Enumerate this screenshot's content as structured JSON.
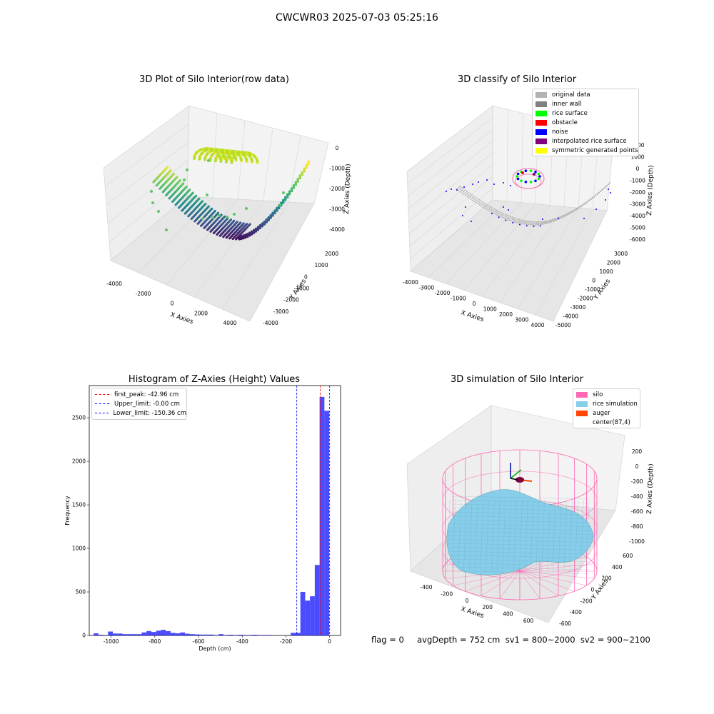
{
  "figure": {
    "suptitle": "CWCWR03 2025-07-03 05:25:16",
    "footer": "flag = 0     avgDepth = 752 cm  sv1 = 800~2000  sv2 = 900~2100"
  },
  "chart_data": [
    {
      "type": "scatter",
      "title": "3D Plot of Silo Interior(row data)",
      "xlabel": "X Axies",
      "ylabel": "Y Axies",
      "zlabel": "Z Axies (Depth)",
      "x_ticks": [
        "-4000",
        "-2000",
        "0",
        "2000",
        "4000"
      ],
      "y_ticks": [
        "2000",
        "1000",
        "0",
        "-1000",
        "-2000",
        "-3000",
        "-4000"
      ],
      "z_ticks": [
        "0",
        "-1000",
        "-2000",
        "-3000",
        "-4000"
      ],
      "colormap": "viridis"
    },
    {
      "type": "scatter",
      "title": "3D classify of Silo Interior",
      "xlabel": "X Axies",
      "ylabel": "Y Axies",
      "zlabel": "Z Axies (Depth)",
      "x_ticks": [
        "-4000",
        "-3000",
        "-2000",
        "-1000",
        "0",
        "1000",
        "2000",
        "3000",
        "4000"
      ],
      "y_ticks": [
        "3000",
        "2000",
        "1000",
        "0",
        "-1000",
        "-2000",
        "-3000",
        "-4000",
        "-5000"
      ],
      "z_ticks": [
        "2000",
        "1000",
        "0",
        "-1000",
        "-2000",
        "-3000",
        "-4000",
        "-5000",
        "-6000"
      ],
      "legend": [
        {
          "label": "original data",
          "color": "#b3b3b3"
        },
        {
          "label": "inner wall",
          "color": "#808080"
        },
        {
          "label": "rice surface",
          "color": "#00ff00"
        },
        {
          "label": "obstacle",
          "color": "#ff0000"
        },
        {
          "label": "noise",
          "color": "#0000ff"
        },
        {
          "label": "interpolated rice surface",
          "color": "#800080"
        },
        {
          "label": "symmetric generated points",
          "color": "#ffff00"
        }
      ]
    },
    {
      "type": "bar",
      "title": "Histogram of Z-Axies (Height) Values",
      "xlabel": "Depth (cm)",
      "ylabel": "Frequency",
      "xlim": [
        -1100,
        50
      ],
      "ylim": [
        0,
        2870
      ],
      "x_ticks": [
        -1000,
        -800,
        -600,
        -400,
        -200,
        0
      ],
      "y_ticks": [
        0,
        500,
        1000,
        1500,
        2000,
        2500
      ],
      "bar_color": "#0000ff",
      "bins": [
        {
          "x": -1069,
          "v": 25
        },
        {
          "x": -1047,
          "v": 8
        },
        {
          "x": -1025,
          "v": 5
        },
        {
          "x": -1003,
          "v": 45
        },
        {
          "x": -981,
          "v": 22
        },
        {
          "x": -959,
          "v": 22
        },
        {
          "x": -937,
          "v": 15
        },
        {
          "x": -915,
          "v": 15
        },
        {
          "x": -893,
          "v": 15
        },
        {
          "x": -871,
          "v": 15
        },
        {
          "x": -849,
          "v": 35
        },
        {
          "x": -827,
          "v": 50
        },
        {
          "x": -805,
          "v": 40
        },
        {
          "x": -783,
          "v": 55
        },
        {
          "x": -761,
          "v": 65
        },
        {
          "x": -739,
          "v": 50
        },
        {
          "x": -717,
          "v": 30
        },
        {
          "x": -695,
          "v": 25
        },
        {
          "x": -673,
          "v": 35
        },
        {
          "x": -651,
          "v": 20
        },
        {
          "x": -629,
          "v": 15
        },
        {
          "x": -607,
          "v": 12
        },
        {
          "x": -585,
          "v": 10
        },
        {
          "x": -563,
          "v": 10
        },
        {
          "x": -541,
          "v": 10
        },
        {
          "x": -519,
          "v": 5
        },
        {
          "x": -497,
          "v": 15
        },
        {
          "x": -475,
          "v": 5
        },
        {
          "x": -453,
          "v": 8
        },
        {
          "x": -431,
          "v": 5
        },
        {
          "x": -409,
          "v": 8
        },
        {
          "x": -387,
          "v": 5
        },
        {
          "x": -365,
          "v": 5
        },
        {
          "x": -343,
          "v": 8
        },
        {
          "x": -321,
          "v": 5
        },
        {
          "x": -299,
          "v": 5
        },
        {
          "x": -277,
          "v": 5
        },
        {
          "x": -255,
          "v": 0
        },
        {
          "x": -233,
          "v": 0
        },
        {
          "x": -211,
          "v": 0
        },
        {
          "x": -189,
          "v": 0
        },
        {
          "x": -167,
          "v": 30
        },
        {
          "x": -145,
          "v": 30
        },
        {
          "x": -123,
          "v": 500
        },
        {
          "x": -101,
          "v": 400
        },
        {
          "x": -79,
          "v": 450
        },
        {
          "x": -57,
          "v": 810
        },
        {
          "x": -35,
          "v": 2740
        },
        {
          "x": -13,
          "v": 2580
        }
      ],
      "vlines": [
        {
          "x": -42.96,
          "label": "first_peak: -42.96 cm",
          "color": "#ff0000"
        },
        {
          "x": -0.0,
          "label": "Upper_limit: -0.00 cm",
          "color": "#0000ff"
        },
        {
          "x": -150.36,
          "label": "Lower_limit: -150.36 cm",
          "color": "#0000ff"
        }
      ]
    },
    {
      "type": "surface",
      "title": "3D simulation of Silo Interior",
      "xlabel": "X Axies",
      "ylabel": "Y Axies",
      "zlabel": "Z Axies (Depth)",
      "x_ticks": [
        "-400",
        "-200",
        "0",
        "200",
        "400",
        "600"
      ],
      "y_ticks": [
        "600",
        "400",
        "200",
        "0",
        "-200",
        "-400",
        "-600"
      ],
      "z_ticks": [
        "200",
        "0",
        "-200",
        "-400",
        "-600",
        "-800",
        "-1000"
      ],
      "legend": [
        {
          "label": "silo",
          "color": "#ff69b4"
        },
        {
          "label": "rice simulation",
          "color": "#87ceeb"
        },
        {
          "label": "auger",
          "color": "#ff4500"
        },
        {
          "label": "center(87,4)",
          "color": ""
        }
      ]
    }
  ]
}
